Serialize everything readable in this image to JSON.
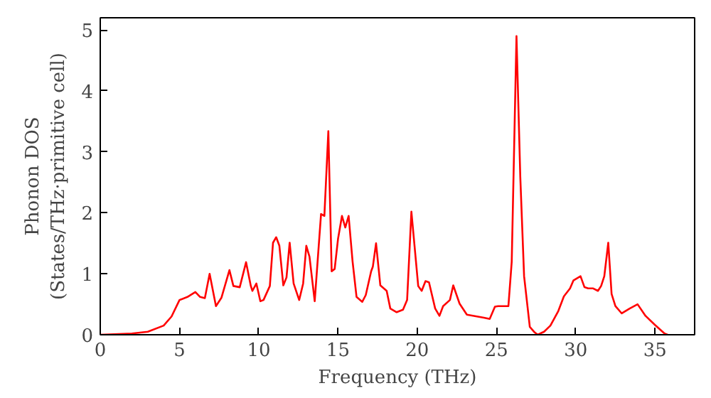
{
  "chart_data": {
    "type": "line",
    "xlabel": "Frequency (THz)",
    "ylabel": "Phonon DOS\n(States/THz·primitive cell)",
    "xlim": [
      0,
      37.5
    ],
    "ylim": [
      0,
      5.2
    ],
    "xticks": [
      0,
      5,
      10,
      15,
      20,
      25,
      30,
      35
    ],
    "yticks": [
      0,
      1,
      2,
      3,
      4,
      5
    ],
    "marker": "none",
    "line_style": "solid",
    "series": [
      {
        "color": "#ff0000",
        "x": [
          0,
          2,
          3,
          4,
          4.5,
          5,
          5.5,
          6,
          6.3,
          6.6,
          6.9,
          7.3,
          7.65,
          8.15,
          8.4,
          8.8,
          9.2,
          9.5,
          9.6,
          9.85,
          10.1,
          10.3,
          10.7,
          10.9,
          11.1,
          11.3,
          11.55,
          11.75,
          11.95,
          12.2,
          12.55,
          12.8,
          13.0,
          13.2,
          13.53,
          13.93,
          14.14,
          14.39,
          14.6,
          14.79,
          15.0,
          15.25,
          15.46,
          15.67,
          15.92,
          16.17,
          16.53,
          16.75,
          17.09,
          17.2,
          17.4,
          17.67,
          18.07,
          18.3,
          18.7,
          19.1,
          19.36,
          19.63,
          20.06,
          20.28,
          20.52,
          20.74,
          21.13,
          21.4,
          21.63,
          22.06,
          22.27,
          22.67,
          23.13,
          24.2,
          24.57,
          24.9,
          25.1,
          25.75,
          25.96,
          26.26,
          26.5,
          26.74,
          27.1,
          27.4,
          27.6,
          28.0,
          28.4,
          28.9,
          29.25,
          29.64,
          29.85,
          30.3,
          30.55,
          30.78,
          31.1,
          31.4,
          31.6,
          31.8,
          32.05,
          32.26,
          32.5,
          32.9,
          33.4,
          33.9,
          34.4,
          35.0,
          35.6,
          35.8
        ],
        "values": [
          0,
          0.02,
          0.05,
          0.15,
          0.3,
          0.57,
          0.62,
          0.7,
          0.62,
          0.6,
          1.0,
          0.47,
          0.61,
          1.06,
          0.8,
          0.78,
          1.19,
          0.8,
          0.72,
          0.84,
          0.55,
          0.57,
          0.8,
          1.51,
          1.6,
          1.46,
          0.81,
          0.94,
          1.51,
          0.84,
          0.57,
          0.84,
          1.46,
          1.28,
          0.55,
          1.98,
          1.95,
          3.34,
          1.04,
          1.08,
          1.57,
          1.95,
          1.76,
          1.95,
          1.2,
          0.62,
          0.54,
          0.65,
          1.04,
          1.12,
          1.5,
          0.81,
          0.72,
          0.43,
          0.37,
          0.41,
          0.57,
          2.02,
          0.8,
          0.72,
          0.88,
          0.86,
          0.43,
          0.31,
          0.47,
          0.57,
          0.81,
          0.51,
          0.33,
          0.28,
          0.26,
          0.46,
          0.47,
          0.47,
          1.2,
          4.9,
          2.59,
          0.96,
          0.13,
          0.04,
          0.0,
          0.05,
          0.15,
          0.39,
          0.63,
          0.76,
          0.89,
          0.96,
          0.78,
          0.76,
          0.76,
          0.72,
          0.8,
          0.96,
          1.51,
          0.67,
          0.47,
          0.35,
          0.43,
          0.5,
          0.31,
          0.16,
          0.02,
          0
        ]
      }
    ]
  }
}
